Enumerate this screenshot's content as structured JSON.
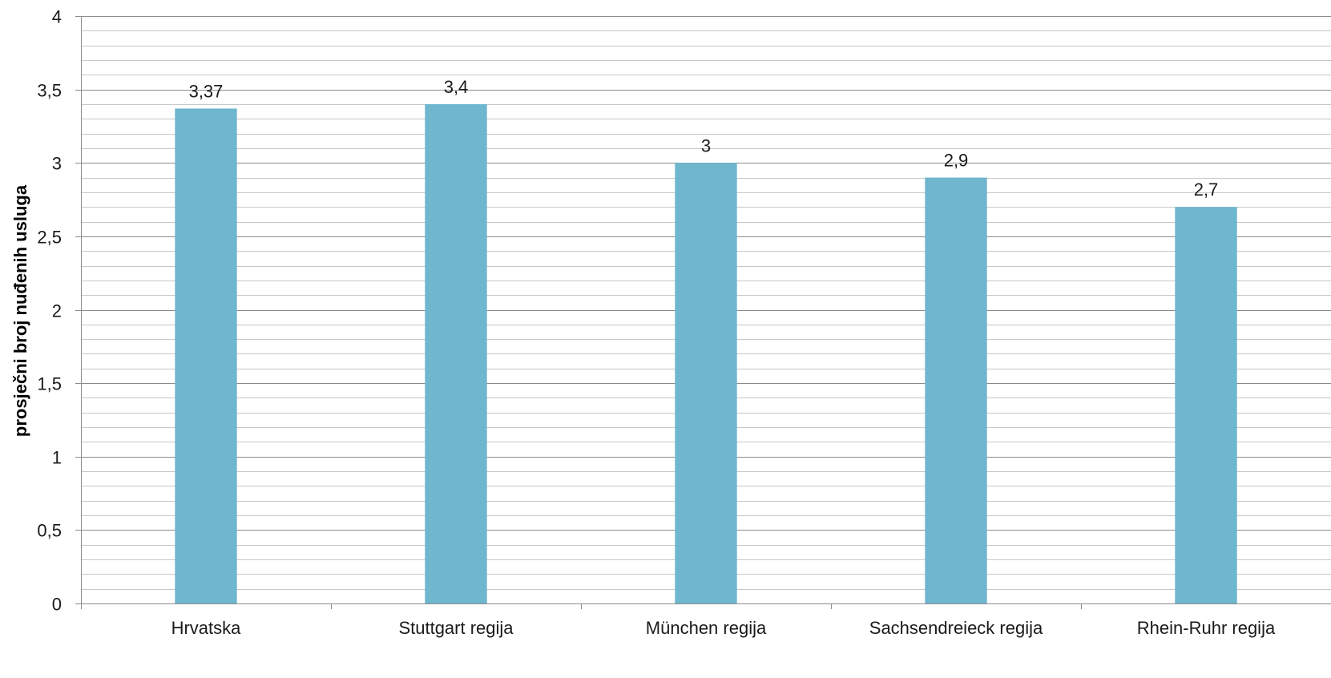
{
  "chart_data": {
    "type": "bar",
    "title": "",
    "xlabel": "",
    "ylabel": "prosječni broj nuđenih usluga",
    "categories": [
      "Hrvatska",
      "Stuttgart regija",
      "München regija",
      "Sachsendreieck regija",
      "Rhein-Ruhr regija"
    ],
    "values": [
      3.37,
      3.4,
      3,
      2.9,
      2.7
    ],
    "data_labels": [
      "3,37",
      "3,4",
      "3",
      "2,9",
      "2,7"
    ],
    "y_ticks": [
      {
        "value": 0,
        "label": "0"
      },
      {
        "value": 0.5,
        "label": "0,5"
      },
      {
        "value": 1,
        "label": "1"
      },
      {
        "value": 1.5,
        "label": "1,5"
      },
      {
        "value": 2,
        "label": "2"
      },
      {
        "value": 2.5,
        "label": "2,5"
      },
      {
        "value": 3,
        "label": "3"
      },
      {
        "value": 3.5,
        "label": "3,5"
      },
      {
        "value": 4,
        "label": "4"
      }
    ],
    "ylim": [
      0,
      4
    ],
    "major_step": 0.5,
    "minor_step": 0.1,
    "grid": true,
    "legend": "none",
    "colors": {
      "bar": "#6fb6cf",
      "major_grid": "#8c8c8c",
      "minor_grid": "#c8c8c8",
      "axis": "#8c8c8c"
    }
  }
}
